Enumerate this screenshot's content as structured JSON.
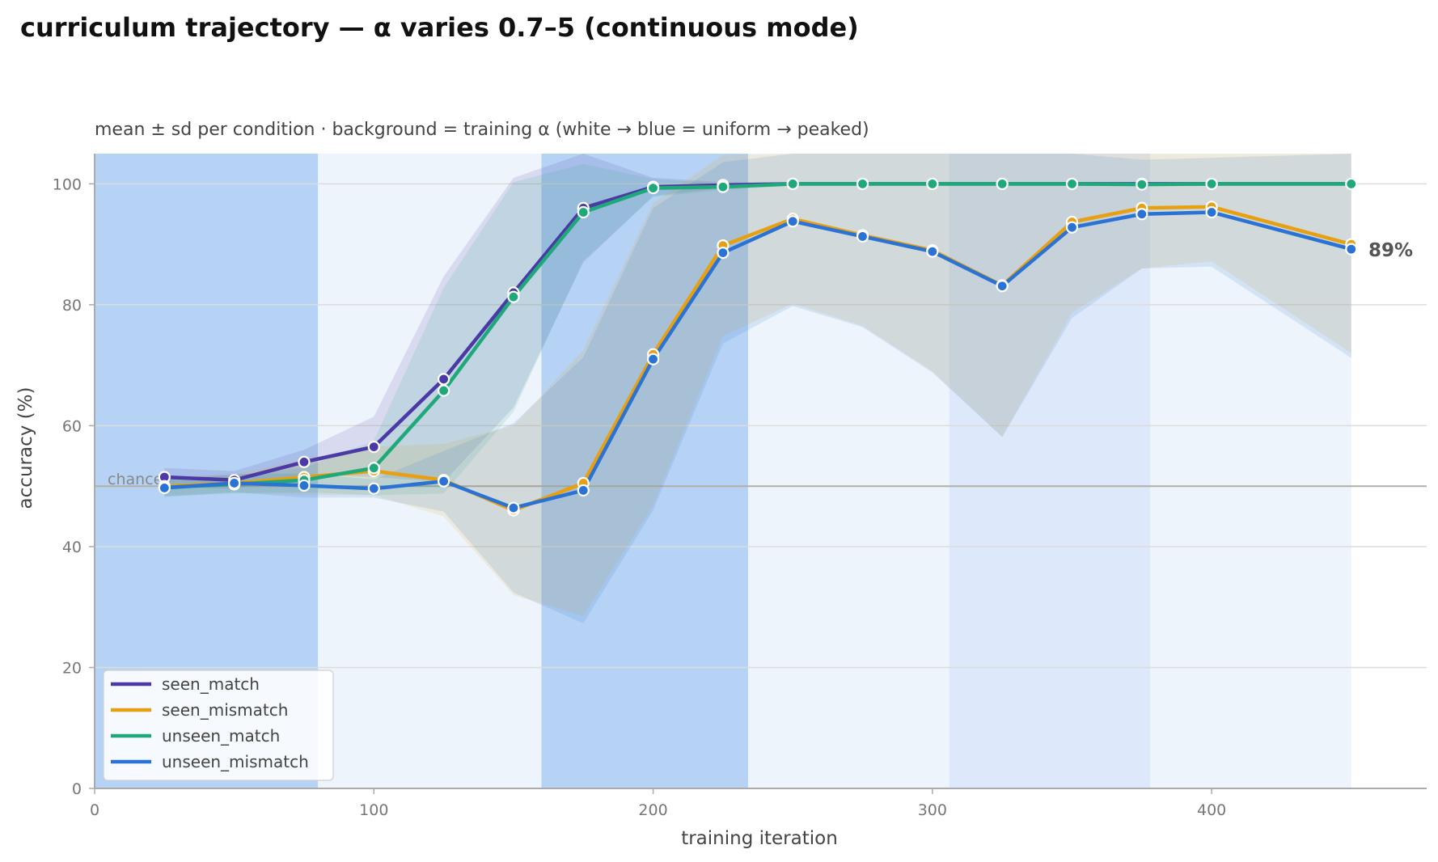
{
  "chart_data": {
    "type": "line",
    "title": "curriculum trajectory — α varies 0.7–5 (continuous mode)",
    "subtitle": "mean ± sd per condition · background = training α (white → blue = uniform → peaked)",
    "xlabel": "training iteration",
    "ylabel": "accuracy (%)",
    "xlim": [
      0,
      477
    ],
    "ylim": [
      0,
      105
    ],
    "xticks": [
      0,
      100,
      200,
      300,
      400
    ],
    "yticks": [
      0,
      20,
      40,
      60,
      80,
      100
    ],
    "grid": "horizontal",
    "legend_position": "lower-left",
    "chance_level": 50,
    "chance_label": "chance",
    "end_label": "89%",
    "x": [
      25,
      50,
      75,
      100,
      125,
      150,
      175,
      200,
      225,
      250,
      275,
      300,
      325,
      350,
      375,
      400,
      450
    ],
    "series": [
      {
        "name": "seen_match",
        "color": "#4b39a6",
        "values": [
          51.5,
          51,
          54,
          56.5,
          67.7,
          82,
          96,
          99.5,
          99.8,
          100,
          100,
          100,
          100,
          100,
          100,
          100,
          100
        ],
        "sd": [
          1.5,
          1.5,
          2,
          5,
          17,
          19,
          9,
          1.5,
          0.5,
          0.3,
          0.3,
          0.3,
          0.3,
          0.3,
          0.3,
          0.3,
          0.3
        ]
      },
      {
        "name": "seen_mismatch",
        "color": "#e8a013",
        "values": [
          50,
          50.5,
          51.5,
          52.5,
          51,
          46,
          50.5,
          71.8,
          89.8,
          94.2,
          91.5,
          89,
          83.2,
          93.7,
          96,
          96.2,
          90
        ],
        "sd": [
          1.5,
          1.5,
          3,
          4,
          6,
          14,
          22,
          25,
          15,
          14,
          15,
          20,
          25,
          15,
          10,
          9,
          18
        ]
      },
      {
        "name": "unseen_match",
        "color": "#1fa97a",
        "values": [
          49.8,
          50.3,
          51,
          53,
          65.8,
          81.3,
          95.3,
          99.3,
          99.5,
          100,
          100,
          100,
          100,
          100,
          99.9,
          100,
          100
        ],
        "sd": [
          1.5,
          1.5,
          2,
          4.5,
          17,
          19,
          8,
          1.5,
          0.5,
          0.3,
          0.3,
          0.3,
          0.3,
          0.3,
          0.3,
          0.3,
          0.3
        ]
      },
      {
        "name": "unseen_mismatch",
        "color": "#2a73d4",
        "values": [
          49.7,
          50.5,
          50.1,
          49.6,
          50.8,
          46.4,
          49.3,
          71,
          88.6,
          93.8,
          91.3,
          88.8,
          83.1,
          92.8,
          95,
          95.3,
          89.2
        ],
        "sd": [
          1.5,
          1.5,
          2,
          1.5,
          5,
          14,
          22,
          25,
          15,
          14,
          15,
          20,
          25,
          15,
          9,
          9,
          18
        ]
      }
    ],
    "background_bands": [
      {
        "x0": 0,
        "x1": 80,
        "color": "#b6d3f5"
      },
      {
        "x0": 80,
        "x1": 160,
        "color": "#edf4fc"
      },
      {
        "x0": 160,
        "x1": 234,
        "color": "#b6d3f5"
      },
      {
        "x0": 234,
        "x1": 306,
        "color": "#edf4fc"
      },
      {
        "x0": 306,
        "x1": 378,
        "color": "#dde9fa"
      },
      {
        "x0": 378,
        "x1": 450,
        "color": "#edf4fc"
      }
    ]
  }
}
